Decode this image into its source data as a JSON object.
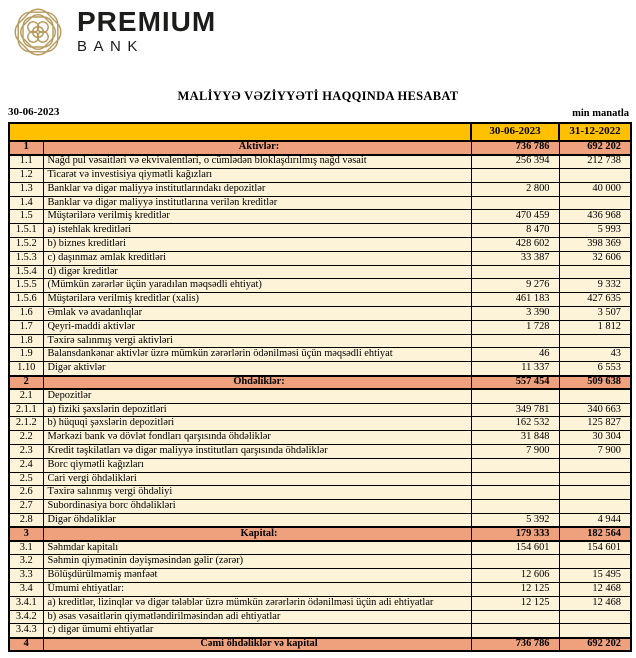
{
  "logo": {
    "brand_top": "PREMIUM",
    "brand_bottom": "BANK",
    "emblem_icon": "ornamental-knot-medallion"
  },
  "report": {
    "title": "MALİYYƏ VƏZİYYƏTİ HAQQINDA HESABAT",
    "date": "30-06-2023",
    "unit": "min manatla"
  },
  "colors": {
    "header_bg": "#FFC000",
    "section_bg": "#EFA17E",
    "row_bg": "#FCF3D9",
    "brand_gold": "#B79B5E"
  },
  "table": {
    "columns": [
      "30-06-2023",
      "31-12-2022"
    ],
    "rows": [
      {
        "num": "1",
        "label": "Aktivlər:",
        "v1": "736 786",
        "v2": "692 202",
        "type": "section"
      },
      {
        "num": "1.1",
        "label": "Nağd pul vəsaitləri və  ekvivalentləri, o cümlədən bloklaşdırılmış nağd vəsait",
        "v1": "256 394",
        "v2": "212 738",
        "type": "data"
      },
      {
        "num": "1.2",
        "label": "Ticarət və investisiya qiymətli kağızları",
        "v1": "",
        "v2": "",
        "type": "data"
      },
      {
        "num": "1.3",
        "label": "Banklar və digər maliyyə institutlarındakı depozitlər",
        "v1": "2 800",
        "v2": "40 000",
        "type": "data"
      },
      {
        "num": "1.4",
        "label": "Banklar və digər maliyyə institutlarına verilən kreditlər",
        "v1": "",
        "v2": "",
        "type": "data"
      },
      {
        "num": "1.5",
        "label": "Müştərilərə verilmiş kreditlər",
        "v1": "470 459",
        "v2": "436 968",
        "type": "data"
      },
      {
        "num": "1.5.1",
        "label": "a) istehlak kreditləri",
        "v1": "8 470",
        "v2": "5 993",
        "type": "data"
      },
      {
        "num": "1.5.2",
        "label": "b) biznes kreditləri",
        "v1": "428 602",
        "v2": "398 369",
        "type": "data"
      },
      {
        "num": "1.5.3",
        "label": "c) daşınmaz əmlak kreditləri",
        "v1": "33 387",
        "v2": "32 606",
        "type": "data"
      },
      {
        "num": "1.5.4",
        "label": "d) digər kreditlər",
        "v1": "",
        "v2": "",
        "type": "data"
      },
      {
        "num": "1.5.5",
        "label": "(Mümkün zərərlər üçün yaradılan məqsədli ehtiyat)",
        "v1": "9 276",
        "v2": "9 332",
        "type": "data"
      },
      {
        "num": "1.5.6",
        "label": "Müştərilərə verilmiş kreditlər (xalis)",
        "v1": "461 183",
        "v2": "427 635",
        "type": "data"
      },
      {
        "num": "1.6",
        "label": "Əmlak və avadanlıqlar",
        "v1": "3 390",
        "v2": "3 507",
        "type": "data"
      },
      {
        "num": "1.7",
        "label": "Qeyri-maddi aktivlər",
        "v1": "1 728",
        "v2": "1 812",
        "type": "data"
      },
      {
        "num": "1.8",
        "label": "Təxirə salınmış vergi aktivləri",
        "v1": "",
        "v2": "",
        "type": "data"
      },
      {
        "num": "1.9",
        "label": "Balansdankənar aktivlər üzrə mümkün zərərlərin ödənilməsi üçün məqsədli ehtiyat",
        "v1": "46",
        "v2": "43",
        "type": "data"
      },
      {
        "num": "1.10",
        "label": "Digər aktivlər",
        "v1": "11 337",
        "v2": "6 553",
        "type": "data"
      },
      {
        "num": "2",
        "label": "Öhdəliklər:",
        "v1": "557 454",
        "v2": "509 638",
        "type": "section"
      },
      {
        "num": "2.1",
        "label": "Depozitlər",
        "v1": "",
        "v2": "",
        "type": "data"
      },
      {
        "num": "2.1.1",
        "label": "a) fiziki şəxslərin depozitləri",
        "v1": "349 781",
        "v2": "340 663",
        "type": "data"
      },
      {
        "num": "2.1.2",
        "label": "b) hüquqi şəxslərin depozitləri",
        "v1": "162 532",
        "v2": "125 827",
        "type": "data"
      },
      {
        "num": "2.2",
        "label": "Mərkəzi bank və dövlət fondları qarşısında öhdəliklər",
        "v1": "31 848",
        "v2": "30 304",
        "type": "data"
      },
      {
        "num": "2.3",
        "label": "Kredit təşkilatları və digər maliyyə institutları qarşısında öhdəliklər",
        "v1": "7 900",
        "v2": "7 900",
        "type": "data"
      },
      {
        "num": "2.4",
        "label": "Borc qiymətli kağızları",
        "v1": "",
        "v2": "",
        "type": "data"
      },
      {
        "num": "2.5",
        "label": "Cari vergi öhdəlikləri",
        "v1": "",
        "v2": "",
        "type": "data"
      },
      {
        "num": "2.6",
        "label": "Təxirə salınmış vergi öhdəliyi",
        "v1": "",
        "v2": "",
        "type": "data"
      },
      {
        "num": "2.7",
        "label": "Subordinasiya borc öhdəlikləri",
        "v1": "",
        "v2": "",
        "type": "data"
      },
      {
        "num": "2.8",
        "label": "Digər öhdəliklər",
        "v1": "5 392",
        "v2": "4 944",
        "type": "data"
      },
      {
        "num": "3",
        "label": "Kapital:",
        "v1": "179 333",
        "v2": "182 564",
        "type": "section"
      },
      {
        "num": "3.1",
        "label": "Səhmdar kapitalı",
        "v1": "154 601",
        "v2": "154 601",
        "type": "data"
      },
      {
        "num": "3.2",
        "label": "Səhmin qiymətinin dəyişməsindən gəlir (zərər)",
        "v1": "",
        "v2": "",
        "type": "data"
      },
      {
        "num": "3.3",
        "label": "Bölüşdürülməmiş mənfəət",
        "v1": "12 606",
        "v2": "15 495",
        "type": "data"
      },
      {
        "num": "3.4",
        "label": "Ümumi ehtiyatlar:",
        "v1": "12 125",
        "v2": "12 468",
        "type": "data"
      },
      {
        "num": "3.4.1",
        "label": "a) kreditlər, lizinqlər və digər tələblər üzrə mümkün zərərlərin ödənilməsi üçün adi ehtiyatlar",
        "v1": "12 125",
        "v2": "12 468",
        "type": "data"
      },
      {
        "num": "3.4.2",
        "label": "b) əsas vəsaitlərin qiymətləndirilməsindən adi ehtiyatlar",
        "v1": "",
        "v2": "",
        "type": "data"
      },
      {
        "num": "3.4.3",
        "label": "c) digər ümumi ehtiyatlar",
        "v1": "",
        "v2": "",
        "type": "data"
      },
      {
        "num": "4",
        "label": "Cəmi öhdəliklər və kapital",
        "v1": "736 786",
        "v2": "692 202",
        "type": "section"
      }
    ]
  }
}
